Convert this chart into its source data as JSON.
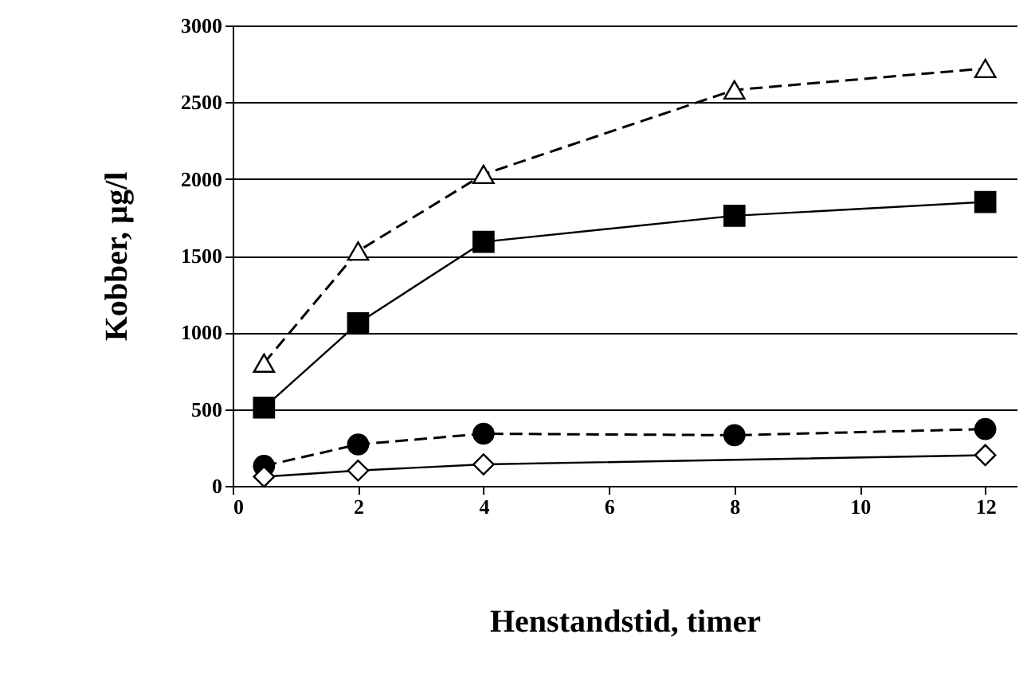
{
  "chart_data": {
    "type": "line",
    "xlabel": "Henstandstid, timer",
    "ylabel": "Kobber, µg/l",
    "x": [
      0.5,
      2,
      4,
      8,
      12
    ],
    "series": [
      {
        "color": "#000000",
        "values": [
          800,
          1530,
          2030,
          2580,
          2720
        ],
        "marker": "triangle",
        "line_style": "dashed"
      },
      {
        "color": "#000000",
        "values": [
          510,
          1060,
          1590,
          1760,
          1850
        ],
        "marker": "square",
        "line_style": "solid"
      },
      {
        "color": "#000000",
        "values": [
          130,
          270,
          340,
          330,
          370
        ],
        "marker": "circle",
        "line_style": "dashed"
      },
      {
        "color": "#000000",
        "values": [
          60,
          100,
          140,
          null,
          200
        ],
        "marker": "diamond",
        "line_style": "solid"
      }
    ],
    "xlim": [
      0,
      12.5
    ],
    "xticks": [
      0,
      2,
      4,
      6,
      8,
      10,
      12
    ],
    "ylim": [
      0,
      3000
    ],
    "yticks": [
      0,
      500,
      1000,
      1500,
      2000,
      2500,
      3000
    ],
    "grid": "y"
  }
}
